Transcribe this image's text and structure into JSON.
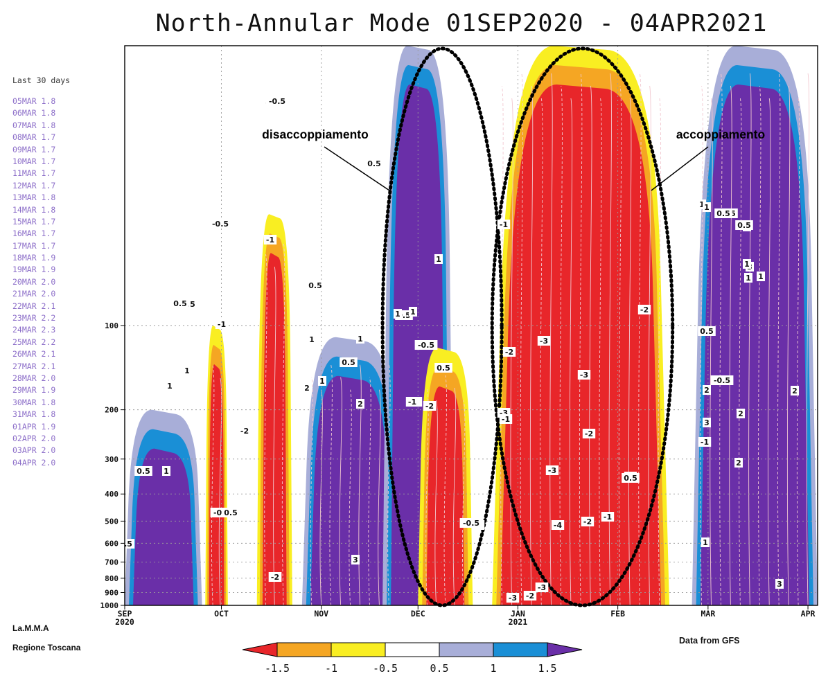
{
  "chart_data": {
    "type": "heatmap",
    "title": "North-Annular Mode 01SEP2020 - 04APR2021",
    "x_axis": {
      "ticks": [
        "SEP\n2020",
        "OCT",
        "NOV",
        "DEC",
        "JAN\n2021",
        "FEB",
        "MAR",
        "APR"
      ],
      "range": [
        "2020-09-01",
        "2021-04-04"
      ]
    },
    "y_axis": {
      "label": "",
      "scale": "log",
      "ticks": [
        100,
        200,
        300,
        400,
        500,
        600,
        700,
        800,
        900,
        1000
      ],
      "range": [
        1000,
        10
      ],
      "grid": true
    },
    "colorbar": {
      "levels": [
        -1.5,
        -1,
        -0.5,
        0.5,
        1,
        1.5
      ],
      "labels": [
        "-1.5",
        "-1",
        "-0.5",
        "0.5",
        "1",
        "1.5"
      ],
      "colors": [
        "#e8262a",
        "#f5a623",
        "#f9ee22",
        "#ffffff",
        "#a8aed8",
        "#1a8fd6",
        "#6a2fa8"
      ]
    },
    "bands": [
      {
        "start": "2020-09-01",
        "end": "2020-09-25",
        "value": 1.5,
        "top_hPa": 200
      },
      {
        "start": "2020-09-26",
        "end": "2020-10-03",
        "value": -2,
        "top_hPa": 100
      },
      {
        "start": "2020-10-12",
        "end": "2020-10-23",
        "value": -2,
        "top_hPa": 40
      },
      {
        "start": "2020-10-26",
        "end": "2020-11-25",
        "value": 2,
        "top_hPa": 110
      },
      {
        "start": "2020-11-20",
        "end": "2020-12-12",
        "value": 1.5,
        "top_hPa": 10
      },
      {
        "start": "2020-12-01",
        "end": "2020-12-18",
        "value": -2,
        "top_hPa": 120
      },
      {
        "start": "2020-12-24",
        "end": "2021-02-17",
        "value": -3,
        "top_hPa": 10
      },
      {
        "start": "2021-02-24",
        "end": "2021-04-04",
        "value": 2,
        "top_hPa": 10
      }
    ],
    "contour_labels": [
      "-0.5",
      "-0.5",
      "-1",
      "-0.5",
      "0.5",
      "0.5",
      "0.5",
      "-1",
      "1",
      "1",
      "1",
      "0.5",
      "1",
      "-0.5",
      "0.5",
      "-0.5",
      "0.5",
      "1",
      "0.5",
      "-1",
      "-2",
      "-3",
      "-3",
      "-2",
      "-3",
      "-3",
      "-2",
      "-3",
      "-2",
      "-4",
      "-2",
      "-1",
      "-1",
      "-3",
      "1",
      "0.5",
      "1",
      "1",
      "0.5",
      "1",
      "-0.5",
      "2",
      "2",
      "2",
      "2",
      "3",
      "2",
      "-2",
      "-3",
      "-3",
      "-4",
      "-2",
      "0.5",
      "-1",
      "2",
      "2",
      "3",
      "1",
      "-0.5",
      "1",
      "0.5",
      "1",
      "1",
      "0.5",
      "2",
      "-2",
      ".5",
      "0.5",
      "1",
      "0.5",
      "-2",
      "-1",
      "-2",
      "-2",
      "1",
      "3",
      "3",
      "1"
    ],
    "annotations": [
      "disaccoppiamento",
      "accoppiamento"
    ]
  },
  "side_panel": {
    "header": "Last 30 days",
    "rows": [
      "05MAR 1.8",
      "06MAR 1.8",
      "07MAR 1.8",
      "08MAR 1.7",
      "09MAR 1.7",
      "10MAR 1.7",
      "11MAR 1.7",
      "12MAR 1.7",
      "13MAR 1.8",
      "14MAR 1.8",
      "15MAR 1.7",
      "16MAR 1.7",
      "17MAR 1.7",
      "18MAR 1.9",
      "19MAR 1.9",
      "20MAR 2.0",
      "21MAR 2.0",
      "22MAR 2.1",
      "23MAR 2.2",
      "24MAR 2.3",
      "25MAR 2.2",
      "26MAR 2.1",
      "27MAR 2.1",
      "28MAR 2.0",
      "29MAR 1.9",
      "30MAR 1.8",
      "31MAR 1.8",
      "01APR 1.9",
      "02APR 2.0",
      "03APR 2.0",
      "04APR 2.0"
    ]
  },
  "credits": {
    "line1": "La.M.M.A",
    "line2": "Regione Toscana",
    "source": "Data from GFS"
  }
}
